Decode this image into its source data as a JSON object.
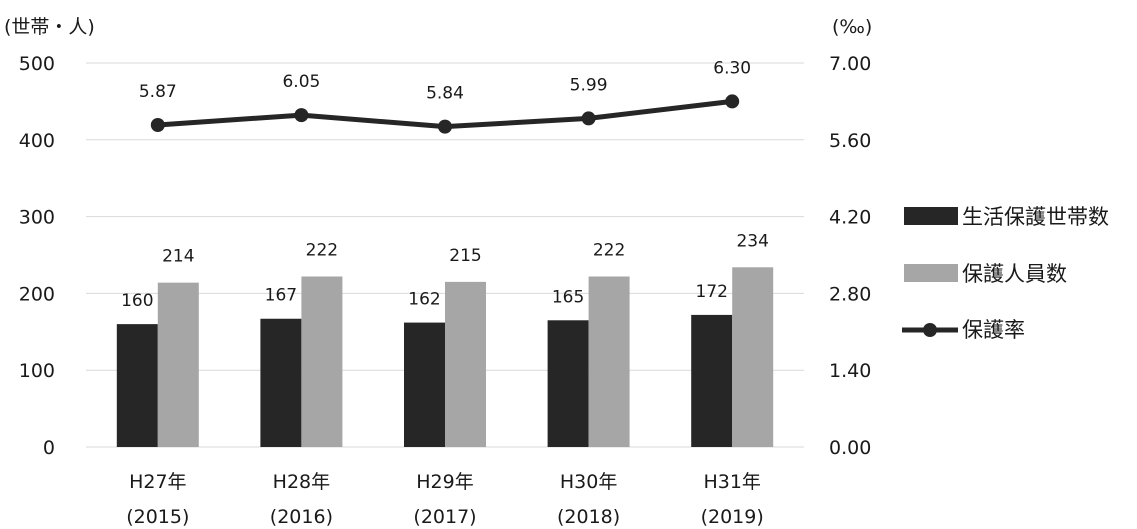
{
  "chart_data": {
    "type": "bar",
    "left_axis_unit": "(世帯・人)",
    "right_axis_unit": "(‰)",
    "categories": [
      {
        "line1": "H27年",
        "line2": "(2015)"
      },
      {
        "line1": "H28年",
        "line2": "(2016)"
      },
      {
        "line1": "H29年",
        "line2": "(2017)"
      },
      {
        "line1": "H30年",
        "line2": "(2018)"
      },
      {
        "line1": "H31年",
        "line2": "(2019)"
      }
    ],
    "left_axis": {
      "min": 0,
      "max": 500,
      "ticks": [
        "0",
        "100",
        "200",
        "300",
        "400",
        "500"
      ]
    },
    "right_axis": {
      "min": 0,
      "max": 7,
      "ticks": [
        "0.00",
        "1.40",
        "2.80",
        "4.20",
        "5.60",
        "7.00"
      ]
    },
    "grid": true,
    "legend_position": "right",
    "series": [
      {
        "name": "生活保護世帯数",
        "type": "bar",
        "axis": "left",
        "color": "#262626",
        "values": [
          160,
          167,
          162,
          165,
          172
        ],
        "labels": [
          "160",
          "167",
          "162",
          "165",
          "172"
        ]
      },
      {
        "name": "保護人員数",
        "type": "bar",
        "axis": "left",
        "color": "#a6a6a6",
        "values": [
          214,
          222,
          215,
          222,
          234
        ],
        "labels": [
          "214",
          "222",
          "215",
          "222",
          "234"
        ]
      },
      {
        "name": "保護率",
        "type": "line",
        "axis": "right",
        "color": "#262626",
        "values": [
          5.87,
          6.05,
          5.84,
          5.99,
          6.3
        ],
        "labels": [
          "5.87",
          "6.05",
          "5.84",
          "5.99",
          "6.30"
        ]
      }
    ]
  }
}
